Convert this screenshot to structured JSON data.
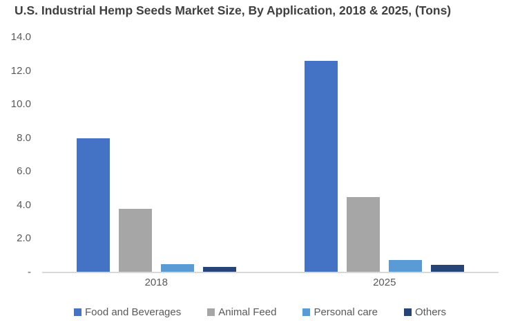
{
  "title": "U.S. Industrial Hemp Seeds Market Size, By Application, 2018 & 2025, (Tons)",
  "chart_data": {
    "type": "bar",
    "title": "U.S. Industrial Hemp Seeds Market Size, By Application, 2018 & 2025, (Tons)",
    "categories": [
      "2018",
      "2025"
    ],
    "series": [
      {
        "name": "Food and Beverages",
        "color": "#4472C4",
        "values": [
          8.0,
          12.6
        ]
      },
      {
        "name": "Animal Feed",
        "color": "#A6A6A6",
        "values": [
          3.8,
          4.5
        ]
      },
      {
        "name": "Personal care",
        "color": "#5B9BD5",
        "values": [
          0.5,
          0.75
        ]
      },
      {
        "name": "Others",
        "color": "#264478",
        "values": [
          0.35,
          0.45
        ]
      }
    ],
    "xlabel": "",
    "ylabel": "",
    "ylim": [
      0,
      14
    ],
    "yticks": [
      {
        "label": "14.0",
        "value": 14
      },
      {
        "label": "12.0",
        "value": 12
      },
      {
        "label": "10.0",
        "value": 10
      },
      {
        "label": "8.0",
        "value": 8
      },
      {
        "label": "6.0",
        "value": 6
      },
      {
        "label": "4.0",
        "value": 4
      },
      {
        "label": "2.0",
        "value": 2
      },
      {
        "label": "-",
        "value": 0
      }
    ],
    "grid": false,
    "legend_position": "bottom",
    "colors": {
      "title_text": "#404040",
      "axis_text": "#595959",
      "axis_line": "#d9d9d9",
      "background": "#ffffff"
    }
  }
}
